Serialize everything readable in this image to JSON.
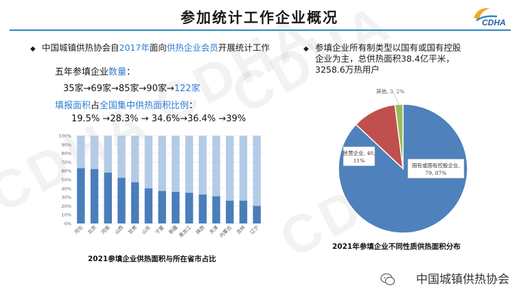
{
  "title": "参加统计工作企业概况",
  "logo": {
    "text": "CDHA"
  },
  "left": {
    "bullet_pre": "中国城镇供热协会自",
    "bullet_year": "2017年",
    "bullet_mid": "面向",
    "bullet_member": "供热企业会员",
    "bullet_post": "开展统计工作",
    "count_label_pre": "五年参填企业",
    "count_label_hl": "数量",
    "count_label_post": "：",
    "counts_seq": "35家→69家→85家→90家→",
    "counts_last": "122家",
    "ratio_label_a": "填报面积",
    "ratio_label_b": "占",
    "ratio_label_c": "全国集中供热面积比例",
    "ratio_label_d": "：",
    "ratios_seq": "19.5% →28.3% → 34.6%→36.4% →39%"
  },
  "right": {
    "bullet_line1": "参填企业所有制类型以国有或国有控股",
    "bullet_line2": "企业为主，总供热面积38.4亿平米，",
    "bullet_line3": "3258.6万热用户"
  },
  "chart_data": [
    {
      "type": "bar",
      "title": "2021参填企业供热面积与所在省市占比",
      "categories": [
        "河北",
        "北京",
        "河南",
        "山西",
        "甘肃",
        "山东",
        "宁夏",
        "新疆",
        "黑龙江",
        "陕西",
        "天津",
        "内蒙古",
        "吉林",
        "辽宁"
      ],
      "values": [
        63,
        62,
        58,
        52,
        47,
        40,
        37,
        36,
        35,
        33,
        31,
        26,
        26,
        20
      ],
      "total": 100,
      "ylim": [
        0,
        100
      ],
      "yticks": [
        "0%",
        "10%",
        "20%",
        "30%",
        "40%",
        "50%",
        "60%",
        "70%",
        "80%",
        "90%",
        "100%"
      ],
      "colors": {
        "value": "#4a7ebb",
        "remainder": "#b4cbe6"
      }
    },
    {
      "type": "pie",
      "title": "2021年参填企业不同性质供热面积分布",
      "slices": [
        {
          "label": "国有或国有控股企业, 79, 87%",
          "value": 87,
          "color": "#4f81bd"
        },
        {
          "label": "民营企业, 40, 11%",
          "value": 11,
          "color": "#c0504d"
        },
        {
          "label": "其他, 3, 2%",
          "value": 2,
          "color": "#9bbb59"
        }
      ]
    }
  ],
  "footer": {
    "brand": "中国城镇供热协会"
  }
}
